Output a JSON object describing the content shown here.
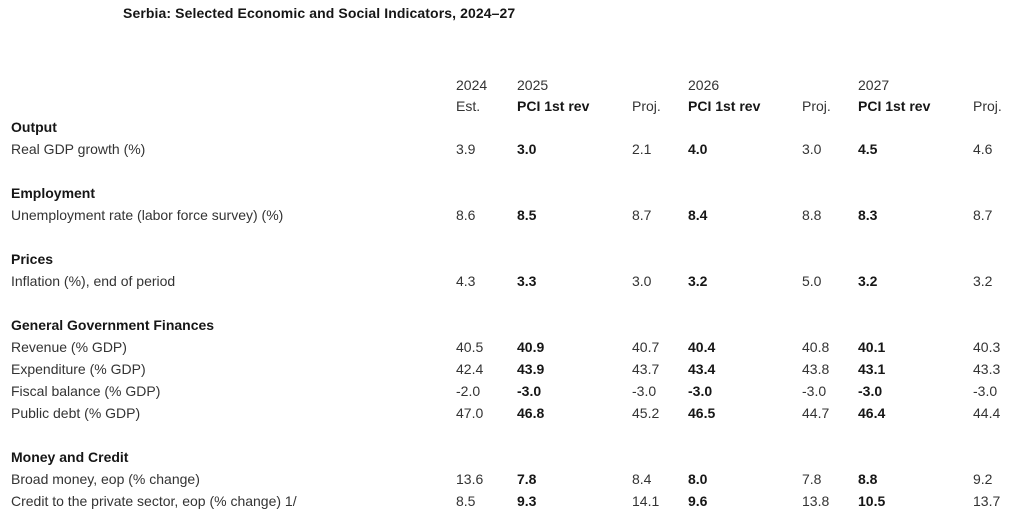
{
  "title": "Serbia: Selected Economic and Social Indicators, 2024–27",
  "table": {
    "year_header": [
      "",
      "2024",
      "2025",
      "",
      "2026",
      "",
      "2027",
      ""
    ],
    "sub_header": [
      "",
      "Est.",
      "PCI 1st rev",
      "Proj.",
      "PCI 1st rev",
      "Proj.",
      "PCI 1st rev",
      "Proj."
    ],
    "sections": [
      {
        "label": "Output",
        "rows": [
          {
            "label": "Real GDP growth (%)",
            "values": [
              "3.9",
              "3.0",
              "2.1",
              "4.0",
              "3.0",
              "4.5",
              "4.6"
            ]
          }
        ]
      },
      {
        "label": "Employment",
        "rows": [
          {
            "label": "Unemployment rate (labor force survey) (%)",
            "values": [
              "8.6",
              "8.5",
              "8.7",
              "8.4",
              "8.8",
              "8.3",
              "8.7"
            ]
          }
        ]
      },
      {
        "label": "Prices",
        "rows": [
          {
            "label": "Inflation (%), end of period",
            "values": [
              "4.3",
              "3.3",
              "3.0",
              "3.2",
              "5.0",
              "3.2",
              "3.2"
            ]
          }
        ]
      },
      {
        "label": "General Government Finances",
        "rows": [
          {
            "label": "Revenue (% GDP)",
            "values": [
              "40.5",
              "40.9",
              "40.7",
              "40.4",
              "40.8",
              "40.1",
              "40.3"
            ]
          },
          {
            "label": "Expenditure (% GDP)",
            "values": [
              "42.4",
              "43.9",
              "43.7",
              "43.4",
              "43.8",
              "43.1",
              "43.3"
            ]
          },
          {
            "label": "Fiscal balance (% GDP)",
            "values": [
              "-2.0",
              "-3.0",
              "-3.0",
              "-3.0",
              "-3.0",
              "-3.0",
              "-3.0"
            ]
          },
          {
            "label": "Public debt (% GDP)",
            "values": [
              "47.0",
              "46.8",
              "45.2",
              "46.5",
              "44.7",
              "46.4",
              "44.4"
            ]
          }
        ]
      },
      {
        "label": "Money and Credit",
        "rows": [
          {
            "label": "Broad money, eop (% change)",
            "values": [
              "13.6",
              "7.8",
              "8.4",
              "8.0",
              "7.8",
              "8.8",
              "9.2"
            ]
          },
          {
            "label": "Credit to the private sector, eop (% change) 1/",
            "values": [
              "8.5",
              "9.3",
              "14.1",
              "9.6",
              "13.8",
              "10.5",
              "13.7"
            ]
          }
        ]
      }
    ]
  }
}
